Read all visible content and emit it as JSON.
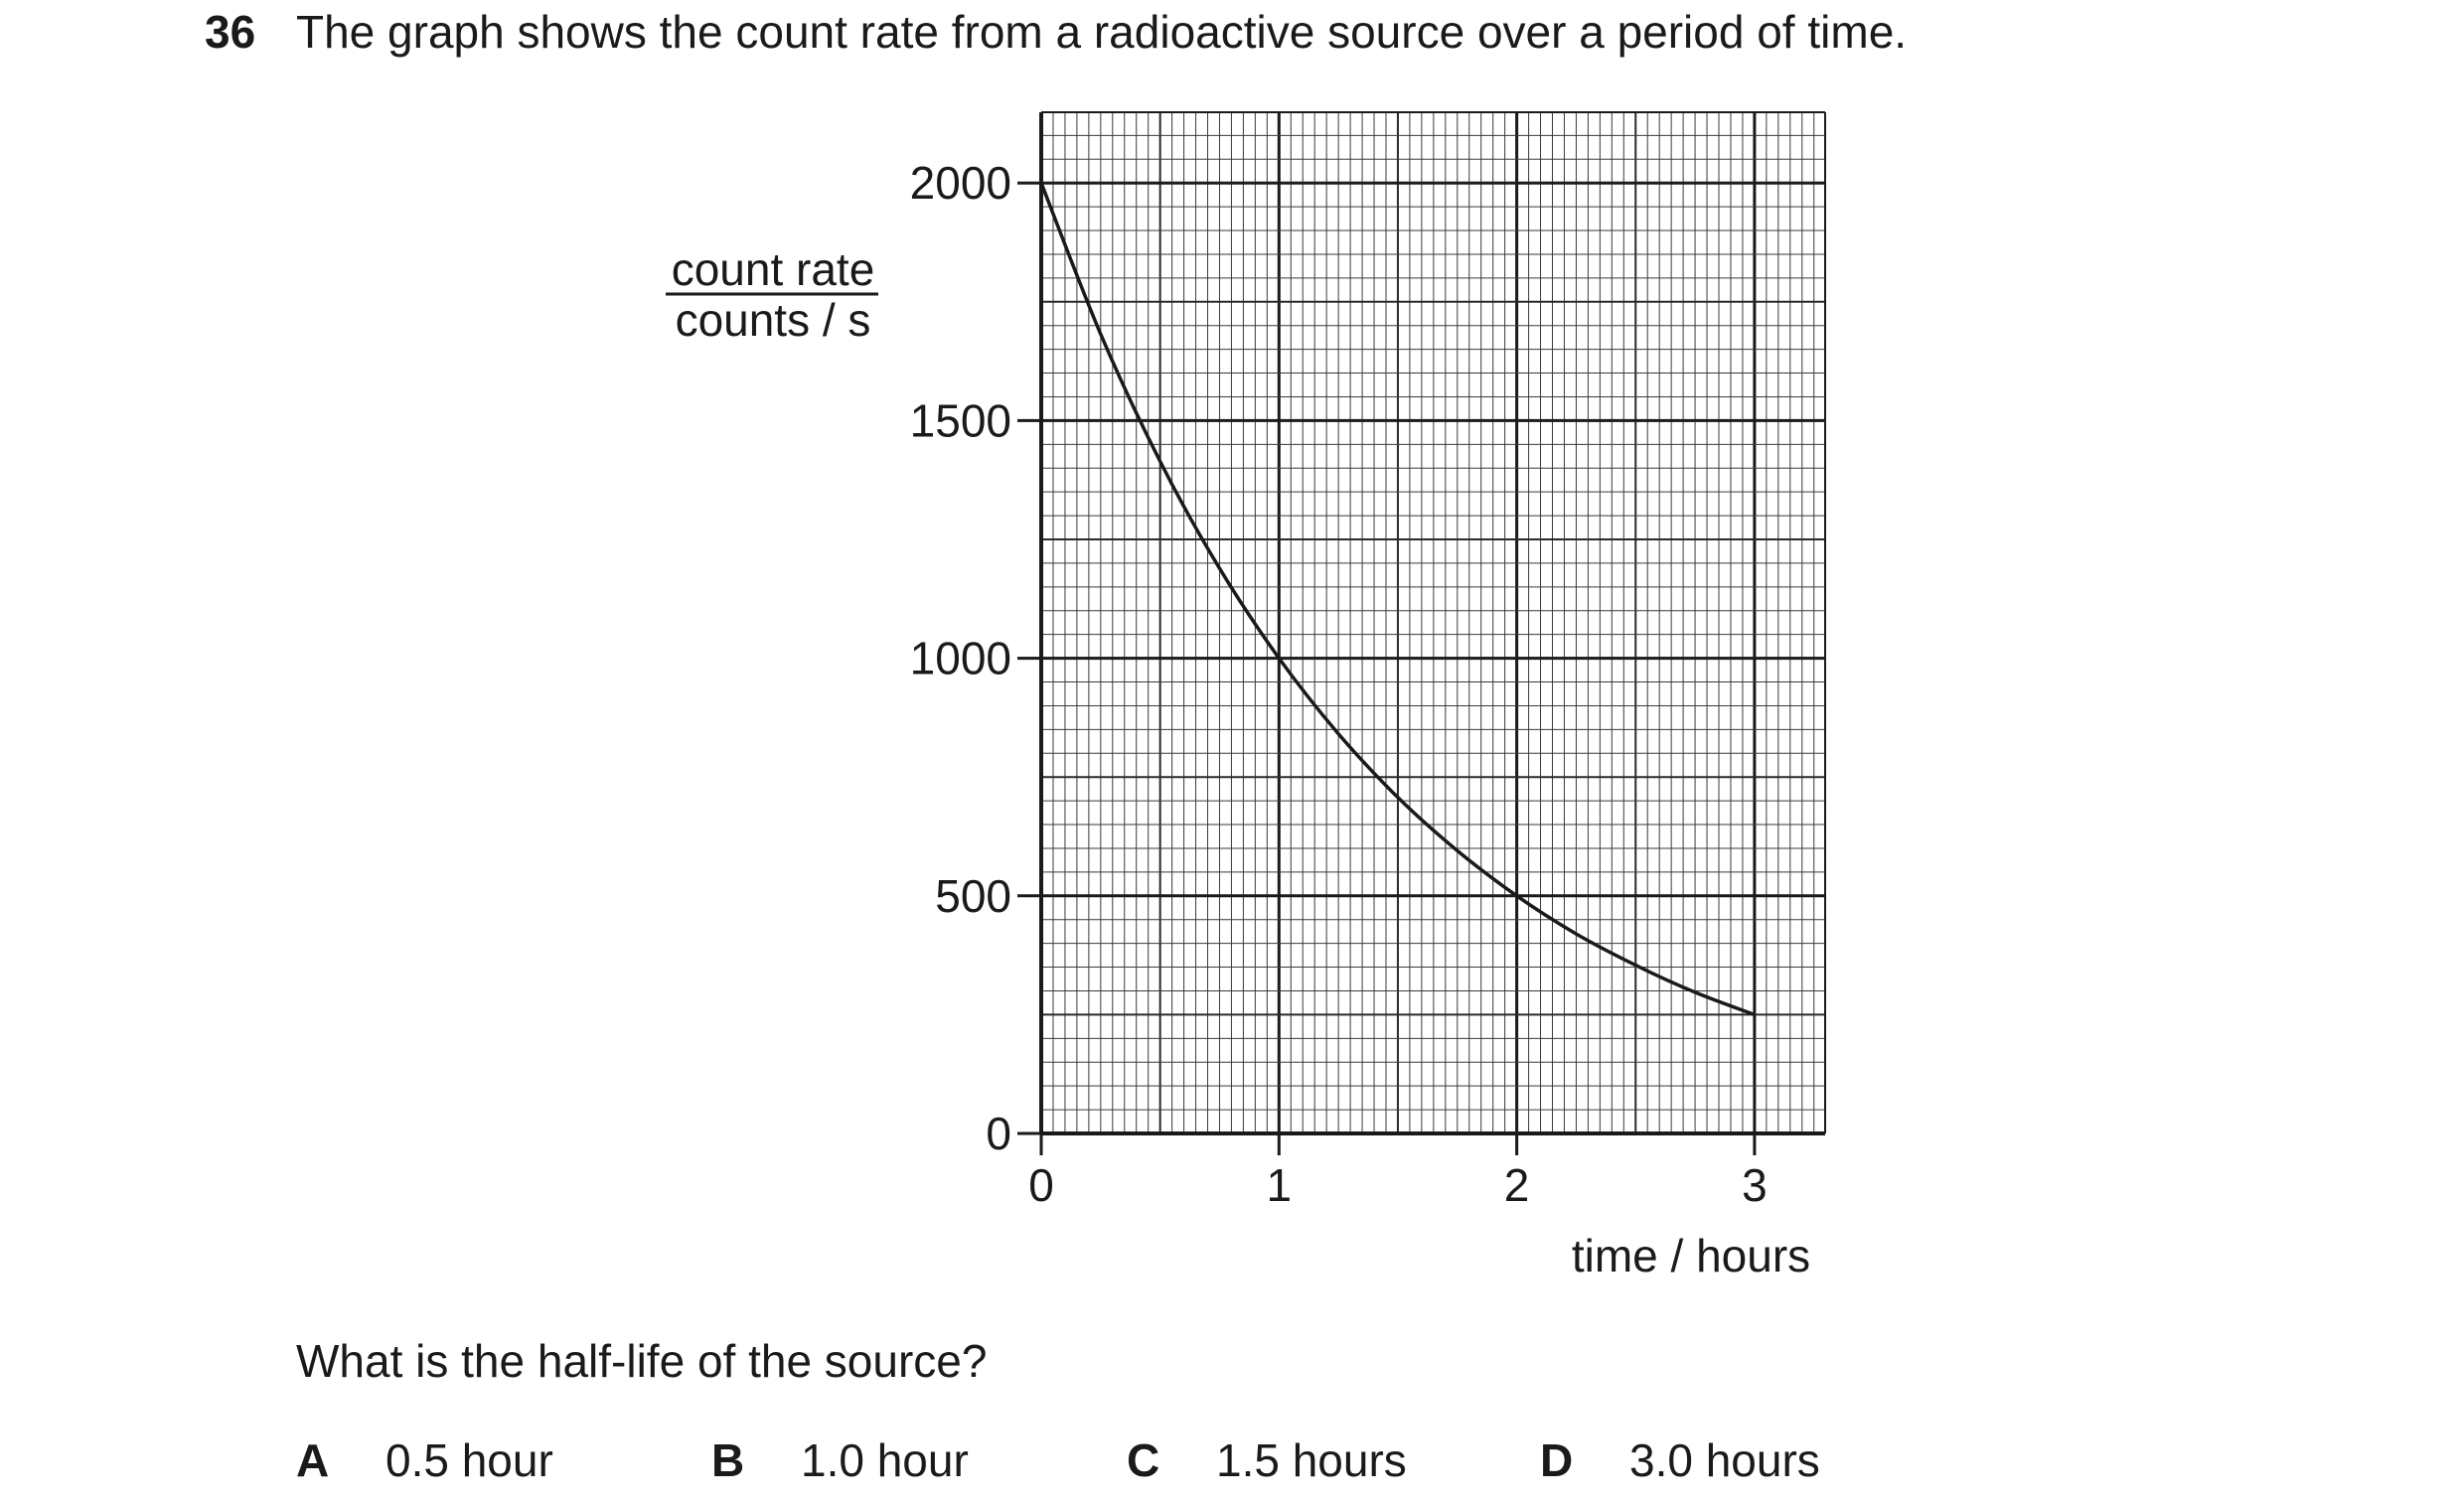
{
  "question": {
    "number": "36",
    "stem": "The graph shows the count rate from a radioactive source over a period of time.",
    "prompt": "What is the half-life of the source?",
    "options": [
      {
        "letter": "A",
        "text": "0.5 hour"
      },
      {
        "letter": "B",
        "text": "1.0 hour"
      },
      {
        "letter": "C",
        "text": "1.5 hours"
      },
      {
        "letter": "D",
        "text": "3.0 hours"
      }
    ]
  },
  "chart_data": {
    "type": "line",
    "title": "",
    "ylabel_top": "count rate",
    "ylabel_bottom": "counts / s",
    "xlabel": "time / hours",
    "xlim": [
      0,
      3.3
    ],
    "ylim": [
      0,
      2150
    ],
    "x_ticks": [
      0,
      1,
      2,
      3
    ],
    "y_ticks": [
      0,
      500,
      1000,
      1500,
      2000
    ],
    "x_tick_labels": [
      "0",
      "1",
      "2",
      "3"
    ],
    "y_tick_labels": [
      "0",
      "500",
      "1000",
      "1500",
      "2000"
    ],
    "grid": true,
    "series": [
      {
        "x": [
          0,
          0.25,
          0.5,
          0.75,
          1.0,
          1.25,
          1.5,
          1.75,
          2.0,
          2.25,
          2.5,
          2.75,
          3.0
        ],
        "y": [
          2000,
          1682,
          1414,
          1189,
          1000,
          841,
          707,
          595,
          500,
          420,
          354,
          297,
          250
        ]
      }
    ]
  }
}
